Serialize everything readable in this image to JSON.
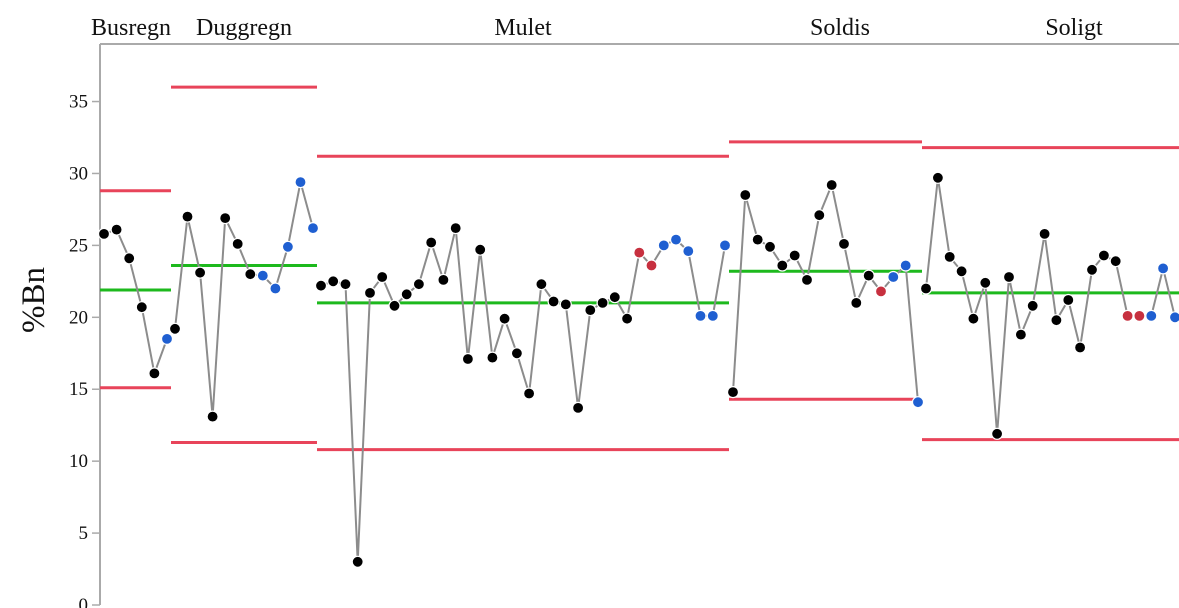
{
  "chart_data": {
    "type": "line",
    "ylabel": "%Bn",
    "ylim": [
      0,
      39
    ],
    "yticks": [
      0,
      5,
      10,
      15,
      20,
      25,
      30,
      35
    ],
    "colors": {
      "normal_point": "#000000",
      "run_point": "#1f5fd1",
      "flag_point": "#c7303f",
      "control_limit": "#e8445a",
      "center_line": "#1db91d",
      "connector": "#8c8c8c"
    },
    "facets": [
      {
        "label": "Busregn",
        "ucl": 28.8,
        "center": 21.9,
        "lcl": 15.1,
        "values": [
          25.8,
          26.1,
          24.1,
          20.7,
          16.1,
          18.5
        ],
        "status": [
          "normal",
          "normal",
          "normal",
          "normal",
          "normal",
          "run"
        ]
      },
      {
        "label": "Duggregn",
        "ucl": 36.0,
        "center": 23.6,
        "lcl": 11.3,
        "values": [
          19.2,
          27.0,
          23.1,
          13.1,
          26.9,
          25.1,
          23.0,
          22.9,
          22.0,
          24.9,
          29.4,
          26.2
        ],
        "status": [
          "normal",
          "normal",
          "normal",
          "normal",
          "normal",
          "normal",
          "normal",
          "run",
          "run",
          "run",
          "run",
          "run"
        ]
      },
      {
        "label": "Mulet",
        "ucl": 31.2,
        "center": 21.0,
        "lcl": 10.8,
        "values": [
          22.2,
          22.5,
          22.3,
          3.0,
          21.7,
          22.8,
          20.8,
          21.6,
          22.3,
          25.2,
          22.6,
          26.2,
          17.1,
          24.7,
          17.2,
          19.9,
          17.5,
          14.7,
          22.3,
          21.1,
          20.9,
          13.7,
          20.5,
          21.0,
          21.4,
          19.9,
          24.5,
          23.6,
          25.0,
          25.4,
          24.6,
          20.1,
          20.1,
          25.0
        ],
        "status": [
          "normal",
          "normal",
          "normal",
          "normal",
          "normal",
          "normal",
          "normal",
          "normal",
          "normal",
          "normal",
          "normal",
          "normal",
          "normal",
          "normal",
          "normal",
          "normal",
          "normal",
          "normal",
          "normal",
          "normal",
          "normal",
          "normal",
          "normal",
          "normal",
          "normal",
          "normal",
          "flag",
          "flag",
          "run",
          "run",
          "run",
          "run",
          "run",
          "run"
        ]
      },
      {
        "label": "Soldis",
        "ucl": 32.2,
        "center": 23.2,
        "lcl": 14.3,
        "values": [
          14.8,
          28.5,
          25.4,
          24.9,
          23.6,
          24.3,
          22.6,
          27.1,
          29.2,
          25.1,
          21.0,
          22.9,
          21.8,
          22.8,
          23.6,
          14.1
        ],
        "status": [
          "normal",
          "normal",
          "normal",
          "normal",
          "normal",
          "normal",
          "normal",
          "normal",
          "normal",
          "normal",
          "normal",
          "normal",
          "flag",
          "run",
          "run",
          "run"
        ]
      },
      {
        "label": "Soligt",
        "ucl": 31.8,
        "center": 21.7,
        "lcl": 11.5,
        "values": [
          22.0,
          29.7,
          24.2,
          23.2,
          19.9,
          22.4,
          11.9,
          22.8,
          18.8,
          20.8,
          25.8,
          19.8,
          21.2,
          17.9,
          23.3,
          24.3,
          23.9,
          20.1,
          20.1,
          20.1,
          23.4,
          20.0
        ],
        "status": [
          "normal",
          "normal",
          "normal",
          "normal",
          "normal",
          "normal",
          "normal",
          "normal",
          "normal",
          "normal",
          "normal",
          "normal",
          "normal",
          "normal",
          "normal",
          "normal",
          "normal",
          "flag",
          "flag",
          "run",
          "run",
          "run"
        ]
      }
    ]
  }
}
